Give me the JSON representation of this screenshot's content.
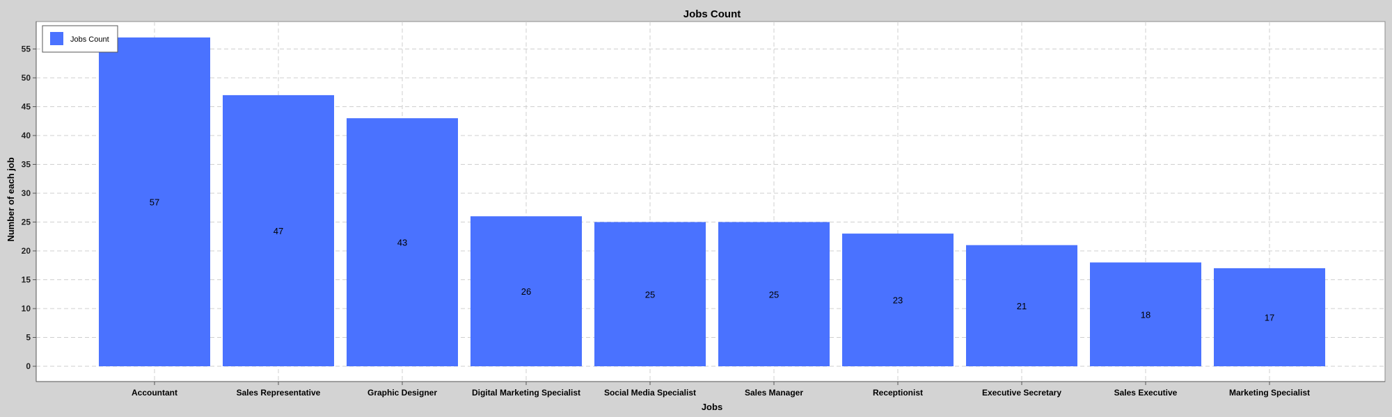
{
  "chart_data": {
    "type": "bar",
    "title": "Jobs Count",
    "xlabel": "Jobs",
    "ylabel": "Number of each job",
    "categories": [
      "Accountant",
      "Sales Representative",
      "Graphic Designer",
      "Digital Marketing Specialist",
      "Social Media Specialist",
      "Sales Manager",
      "Receptionist",
      "Executive Secretary",
      "Sales Executive",
      "Marketing Specialist"
    ],
    "series": [
      {
        "name": "Jobs Count",
        "values": [
          57,
          47,
          43,
          26,
          25,
          25,
          23,
          21,
          18,
          17
        ]
      }
    ],
    "ylim": [
      -2,
      59
    ],
    "yticks": [
      0,
      5,
      10,
      15,
      20,
      25,
      30,
      35,
      40,
      45,
      50,
      55
    ],
    "grid": true,
    "legend_position": "top-left",
    "colors": {
      "bar": "#4a72ff",
      "background": "#d3d3d3",
      "plot_background": "#ffffff",
      "grid": "#cfcfcf"
    }
  }
}
